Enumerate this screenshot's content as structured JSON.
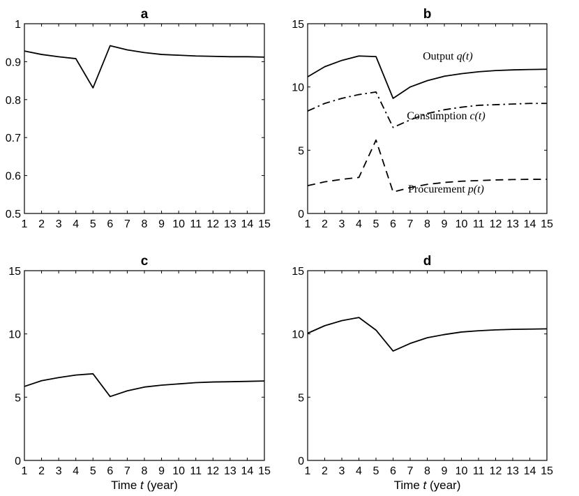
{
  "chart_data": [
    {
      "panel": "a",
      "title": "a",
      "type": "line",
      "xlabel": "",
      "ylabel": "",
      "xlim": [
        1,
        15
      ],
      "ylim": [
        0.5,
        1
      ],
      "xticks": [
        1,
        2,
        3,
        4,
        5,
        6,
        7,
        8,
        9,
        10,
        11,
        12,
        13,
        14,
        15
      ],
      "yticks": [
        0.5,
        0.6,
        0.7,
        0.8,
        0.9,
        1
      ],
      "ytick_labels": [
        "0.5",
        "0.6",
        "0.7",
        "0.8",
        "0.9",
        "1"
      ],
      "series": [
        {
          "name": "a",
          "style": "solid",
          "x": [
            1,
            2,
            3,
            4,
            5,
            6,
            7,
            8,
            9,
            10,
            11,
            12,
            13,
            14,
            15
          ],
          "values": [
            0.928,
            0.919,
            0.913,
            0.908,
            0.831,
            0.942,
            0.931,
            0.924,
            0.919,
            0.917,
            0.915,
            0.914,
            0.913,
            0.913,
            0.912
          ]
        }
      ],
      "annotations": []
    },
    {
      "panel": "b",
      "title": "b",
      "type": "line",
      "xlabel": "",
      "ylabel": "",
      "xlim": [
        1,
        15
      ],
      "ylim": [
        0,
        15
      ],
      "xticks": [
        1,
        2,
        3,
        4,
        5,
        6,
        7,
        8,
        9,
        10,
        11,
        12,
        13,
        14,
        15
      ],
      "yticks": [
        0,
        5,
        10,
        15
      ],
      "ytick_labels": [
        "0",
        "5",
        "10",
        "15"
      ],
      "series": [
        {
          "name": "Output q(t)",
          "style": "solid",
          "x": [
            1,
            2,
            3,
            4,
            5,
            6,
            7,
            8,
            9,
            10,
            11,
            12,
            13,
            14,
            15
          ],
          "values": [
            10.8,
            11.6,
            12.1,
            12.45,
            12.4,
            9.1,
            10.0,
            10.5,
            10.85,
            11.05,
            11.2,
            11.3,
            11.35,
            11.38,
            11.4
          ]
        },
        {
          "name": "Consumption c(t)",
          "style": "dashdot",
          "x": [
            1,
            2,
            3,
            4,
            5,
            6,
            7,
            8,
            9,
            10,
            11,
            12,
            13,
            14,
            15
          ],
          "values": [
            8.1,
            8.7,
            9.1,
            9.4,
            9.6,
            6.8,
            7.4,
            7.9,
            8.2,
            8.4,
            8.55,
            8.6,
            8.65,
            8.7,
            8.7
          ]
        },
        {
          "name": "Procurement p(t)",
          "style": "dashed",
          "x": [
            1,
            2,
            3,
            4,
            5,
            6,
            7,
            8,
            9,
            10,
            11,
            12,
            13,
            14,
            15
          ],
          "values": [
            2.2,
            2.5,
            2.7,
            2.85,
            5.8,
            1.7,
            2.05,
            2.3,
            2.45,
            2.55,
            2.6,
            2.65,
            2.68,
            2.7,
            2.7
          ]
        }
      ],
      "annotations": [
        {
          "text": "Output",
          "math": "q(t)",
          "at_x": 9.2,
          "at_y": 12.15
        },
        {
          "text": "Consumption",
          "math": "c(t)",
          "at_x": 9.1,
          "at_y": 7.45
        },
        {
          "text": "Procurement",
          "math": "p(t)",
          "at_x": 9.1,
          "at_y": 1.65
        }
      ]
    },
    {
      "panel": "c",
      "title": "c",
      "type": "line",
      "xlabel": "Time t (year)",
      "ylabel": "",
      "xlim": [
        1,
        15
      ],
      "ylim": [
        0,
        15
      ],
      "xticks": [
        1,
        2,
        3,
        4,
        5,
        6,
        7,
        8,
        9,
        10,
        11,
        12,
        13,
        14,
        15
      ],
      "yticks": [
        0,
        5,
        10,
        15
      ],
      "ytick_labels": [
        "0",
        "5",
        "10",
        "15"
      ],
      "series": [
        {
          "name": "c",
          "style": "solid",
          "x": [
            1,
            2,
            3,
            4,
            5,
            6,
            7,
            8,
            9,
            10,
            11,
            12,
            13,
            14,
            15
          ],
          "values": [
            5.85,
            6.3,
            6.55,
            6.75,
            6.85,
            5.05,
            5.5,
            5.8,
            5.95,
            6.05,
            6.15,
            6.2,
            6.22,
            6.25,
            6.28
          ]
        }
      ],
      "annotations": []
    },
    {
      "panel": "d",
      "title": "d",
      "type": "line",
      "xlabel": "Time t (year)",
      "ylabel": "",
      "xlim": [
        1,
        15
      ],
      "ylim": [
        0,
        15
      ],
      "xticks": [
        1,
        2,
        3,
        4,
        5,
        6,
        7,
        8,
        9,
        10,
        11,
        12,
        13,
        14,
        15
      ],
      "yticks": [
        0,
        5,
        10,
        15
      ],
      "ytick_labels": [
        "0",
        "5",
        "10",
        "15"
      ],
      "series": [
        {
          "name": "d",
          "style": "solid",
          "x": [
            1,
            2,
            3,
            4,
            5,
            6,
            7,
            8,
            9,
            10,
            11,
            12,
            13,
            14,
            15
          ],
          "values": [
            10.05,
            10.65,
            11.05,
            11.3,
            10.3,
            8.65,
            9.25,
            9.7,
            9.95,
            10.15,
            10.25,
            10.32,
            10.36,
            10.38,
            10.4
          ]
        }
      ],
      "annotations": []
    }
  ]
}
